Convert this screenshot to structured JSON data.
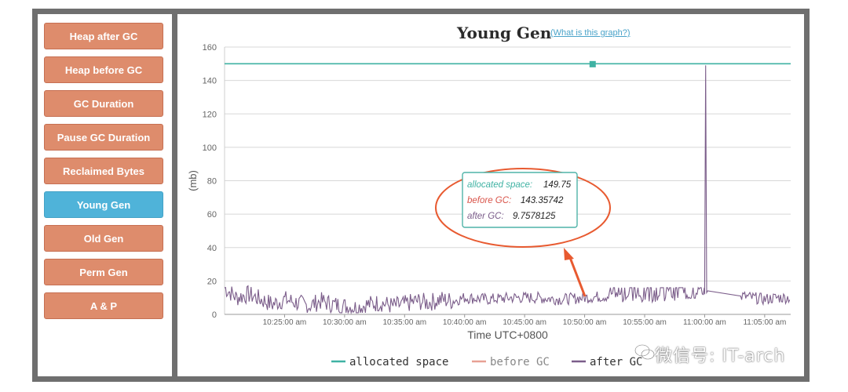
{
  "sidebar": {
    "items": [
      {
        "label": "Heap after GC",
        "active": false
      },
      {
        "label": "Heap before GC",
        "active": false
      },
      {
        "label": "GC Duration",
        "active": false
      },
      {
        "label": "Pause GC Duration",
        "active": false
      },
      {
        "label": "Reclaimed Bytes",
        "active": false
      },
      {
        "label": "Young Gen",
        "active": true
      },
      {
        "label": "Old Gen",
        "active": false
      },
      {
        "label": "Perm Gen",
        "active": false
      },
      {
        "label": "A & P",
        "active": false
      }
    ]
  },
  "header": {
    "title": "Young Gen",
    "help_link": "(What is this graph?)"
  },
  "tooltip": {
    "rows": [
      {
        "label": "allocated space:",
        "value": "149.75",
        "color": "#3fb2a3"
      },
      {
        "label": "before GC:",
        "value": "143.35742",
        "color": "#d9544a"
      },
      {
        "label": "after GC:",
        "value": "9.7578125",
        "color": "#7b5d8a"
      }
    ]
  },
  "watermark": {
    "text": "微信号: IT-arch"
  },
  "colors": {
    "allocated": "#3fb2a3",
    "before": "#e8a194",
    "after": "#7b5d8a",
    "accent_active": "#4fb3d9",
    "nav_button": "#de8c6c",
    "annotation": "#e85a30"
  },
  "chart_data": {
    "type": "line",
    "title": "Young Gen",
    "xlabel": "Time UTC+0800",
    "ylabel": "(mb)",
    "ylim": [
      0,
      160
    ],
    "yticks": [
      0,
      20,
      40,
      60,
      80,
      100,
      120,
      140,
      160
    ],
    "xlim": [
      "10:20:00 am",
      "11:07:10 am"
    ],
    "xticks": [
      "10:25:00 am",
      "10:30:00 am",
      "10:35:00 am",
      "10:40:00 am",
      "10:45:00 am",
      "10:50:00 am",
      "10:55:00 am",
      "11:00:00 am",
      "11:05:00 am"
    ],
    "grid": true,
    "legend_position": "bottom",
    "series": [
      {
        "name": "allocated space",
        "x": [
          "10:20:00 am",
          "11:07:10 am"
        ],
        "values": [
          150,
          150
        ],
        "highlight": {
          "x": "10:50:40 am",
          "y": 149.75
        }
      },
      {
        "name": "before GC",
        "x": [],
        "values": []
      },
      {
        "name": "after GC",
        "x": [
          "10:20:00 am",
          "10:21:00 am",
          "10:22:00 am",
          "10:23:00 am",
          "10:24:00 am",
          "10:25:00 am",
          "10:26:00 am",
          "10:27:00 am",
          "10:28:00 am",
          "10:29:00 am",
          "10:30:00 am",
          "10:31:00 am",
          "10:32:00 am",
          "10:33:00 am",
          "10:34:00 am",
          "10:35:00 am",
          "10:36:00 am",
          "10:37:00 am",
          "10:38:00 am",
          "10:39:00 am",
          "10:40:00 am",
          "10:42:00 am",
          "10:44:00 am",
          "10:46:00 am",
          "10:48:00 am",
          "10:50:00 am",
          "10:52:00 am",
          "10:54:00 am",
          "10:56:00 am",
          "10:58:00 am",
          "11:00:00 am",
          "11:00:05 am",
          "11:00:10 am",
          "11:00:20 am",
          "11:03:00 am",
          "11:04:00 am",
          "11:05:00 am",
          "11:06:00 am",
          "11:07:00 am"
        ],
        "values": [
          16,
          10,
          12,
          9,
          6,
          9,
          7,
          5,
          8,
          6,
          5,
          4,
          6,
          7,
          5,
          6,
          8,
          7,
          9,
          8,
          10,
          9,
          10,
          10,
          9,
          10,
          11,
          10,
          11,
          12,
          12,
          149,
          13,
          13,
          11,
          10,
          9,
          10,
          10
        ]
      }
    ]
  }
}
